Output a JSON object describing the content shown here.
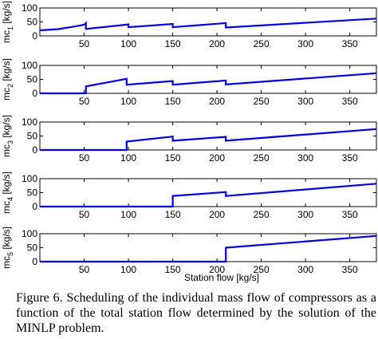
{
  "caption": "Figure 6. Scheduling of the individual mass flow of compressors as a function of the total station flow determined by the solution of the MINLP problem.",
  "style": {
    "line_color": "#0000dd",
    "axis_color": "#000000"
  },
  "chart_data": [
    {
      "type": "line",
      "ylabel": "mc1 [kg/s]",
      "ylabel_main": "mc",
      "ylabel_sub": "1",
      "ylabel_unit": " [kg/s]",
      "xlim": [
        0,
        380
      ],
      "ylim": [
        0,
        100
      ],
      "xticks": [
        50,
        100,
        150,
        200,
        250,
        300,
        350
      ],
      "yticks": [
        0,
        50,
        100
      ],
      "segments": [
        [
          [
            0,
            20
          ],
          [
            20,
            24
          ],
          [
            40,
            34
          ],
          [
            50,
            40
          ],
          [
            52,
            46
          ],
          [
            52,
            25
          ],
          [
            100,
            41
          ],
          [
            100,
            31
          ],
          [
            150,
            43
          ],
          [
            150,
            31
          ],
          [
            210,
            46
          ],
          [
            210,
            30
          ],
          [
            380,
            62
          ]
        ]
      ]
    },
    {
      "type": "line",
      "ylabel": "mc2 [kg/s]",
      "ylabel_main": "mc",
      "ylabel_sub": "2",
      "ylabel_unit": " [kg/s]",
      "xlim": [
        0,
        380
      ],
      "ylim": [
        0,
        100
      ],
      "xticks": [
        50,
        100,
        150,
        200,
        250,
        300,
        350
      ],
      "yticks": [
        0,
        50,
        100
      ],
      "segments": [
        [
          [
            0,
            0
          ],
          [
            52,
            0
          ],
          [
            52,
            25
          ],
          [
            98,
            52
          ],
          [
            98,
            31
          ],
          [
            150,
            44
          ],
          [
            150,
            31
          ],
          [
            210,
            46
          ],
          [
            210,
            32
          ],
          [
            380,
            72
          ]
        ]
      ]
    },
    {
      "type": "line",
      "ylabel": "mc3 [kg/s]",
      "ylabel_main": "mc",
      "ylabel_sub": "3",
      "ylabel_unit": " [kg/s]",
      "xlim": [
        0,
        380
      ],
      "ylim": [
        0,
        100
      ],
      "xticks": [
        50,
        100,
        150,
        200,
        250,
        300,
        350
      ],
      "yticks": [
        0,
        50,
        100
      ],
      "segments": [
        [
          [
            0,
            0
          ],
          [
            98,
            0
          ],
          [
            98,
            30
          ],
          [
            150,
            48
          ],
          [
            150,
            33
          ],
          [
            210,
            47
          ],
          [
            210,
            33
          ],
          [
            380,
            75
          ]
        ]
      ]
    },
    {
      "type": "line",
      "ylabel": "mc4 [kg/s]",
      "ylabel_main": "mc",
      "ylabel_sub": "4",
      "ylabel_unit": " [kg/s]",
      "xlim": [
        0,
        380
      ],
      "ylim": [
        0,
        100
      ],
      "xticks": [
        50,
        100,
        150,
        200,
        250,
        300,
        350
      ],
      "yticks": [
        0,
        50,
        100
      ],
      "segments": [
        [
          [
            0,
            0
          ],
          [
            150,
            0
          ],
          [
            150,
            38
          ],
          [
            210,
            52
          ],
          [
            210,
            38
          ],
          [
            380,
            82
          ]
        ]
      ]
    },
    {
      "type": "line",
      "ylabel": "mc5 [kg/s]",
      "ylabel_main": "mc",
      "ylabel_sub": "5",
      "ylabel_unit": " [kg/s]",
      "xlim": [
        0,
        380
      ],
      "ylim": [
        0,
        100
      ],
      "xticks": [
        50,
        100,
        150,
        200,
        250,
        300,
        350
      ],
      "yticks": [
        0,
        50,
        100
      ],
      "segments": [
        [
          [
            0,
            0
          ],
          [
            210,
            0
          ],
          [
            210,
            50
          ],
          [
            380,
            92
          ]
        ]
      ]
    }
  ],
  "xlabel": "Station flow [kg/s]"
}
